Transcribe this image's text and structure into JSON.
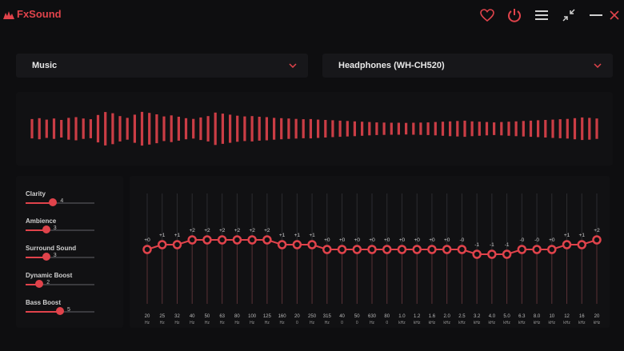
{
  "app": {
    "name": "FxSound"
  },
  "colors": {
    "accent": "#e0434b",
    "bg": "#0e0e10",
    "panel": "#17171a"
  },
  "top_icons": [
    "heart-icon",
    "power-icon",
    "menu-icon",
    "minimize-view-icon",
    "minimize-icon",
    "close-icon"
  ],
  "preset": {
    "value": "Music"
  },
  "output_device": {
    "value": "Headphones (WH-CH520)"
  },
  "effects": [
    {
      "label": "Clarity",
      "value": 4,
      "fraction": 0.4
    },
    {
      "label": "Ambience",
      "value": 3,
      "fraction": 0.3
    },
    {
      "label": "Surround Sound",
      "value": 3,
      "fraction": 0.3
    },
    {
      "label": "Dynamic Boost",
      "value": 2,
      "fraction": 0.2
    },
    {
      "label": "Bass Boost",
      "value": 5,
      "fraction": 0.5
    }
  ],
  "eq": {
    "bands": [
      {
        "gain": "+0",
        "g": 0,
        "f1": "20",
        "f2": "Hz"
      },
      {
        "gain": "+1",
        "g": 1,
        "f1": "25",
        "f2": "Hz"
      },
      {
        "gain": "+1",
        "g": 1,
        "f1": "32",
        "f2": "Hz"
      },
      {
        "gain": "+2",
        "g": 2,
        "f1": "40",
        "f2": "Hz"
      },
      {
        "gain": "+2",
        "g": 2,
        "f1": "50",
        "f2": "Hz"
      },
      {
        "gain": "+2",
        "g": 2,
        "f1": "63",
        "f2": "Hz"
      },
      {
        "gain": "+2",
        "g": 2,
        "f1": "80",
        "f2": "Hz"
      },
      {
        "gain": "+2",
        "g": 2,
        "f1": "100",
        "f2": "Hz"
      },
      {
        "gain": "+2",
        "g": 2,
        "f1": "125",
        "f2": "Hz"
      },
      {
        "gain": "+1",
        "g": 1,
        "f1": "160",
        "f2": "Hz"
      },
      {
        "gain": "+1",
        "g": 1,
        "f1": "20",
        "f2": "0"
      },
      {
        "gain": "+1",
        "g": 1,
        "f1": "250",
        "f2": "Hz"
      },
      {
        "gain": "+0",
        "g": 0,
        "f1": "315",
        "f2": "Hz"
      },
      {
        "gain": "+0",
        "g": 0,
        "f1": "40",
        "f2": "0"
      },
      {
        "gain": "+0",
        "g": 0,
        "f1": "50",
        "f2": "0"
      },
      {
        "gain": "+0",
        "g": 0,
        "f1": "630",
        "f2": "Hz"
      },
      {
        "gain": "+0",
        "g": 0,
        "f1": "80",
        "f2": "0"
      },
      {
        "gain": "+0",
        "g": 0,
        "f1": "1.0",
        "f2": "kHz"
      },
      {
        "gain": "+0",
        "g": 0,
        "f1": "1.2",
        "f2": "kHz"
      },
      {
        "gain": "+0",
        "g": 0,
        "f1": "1.6",
        "f2": "kHz"
      },
      {
        "gain": "+0",
        "g": 0,
        "f1": "2.0",
        "f2": "kHz"
      },
      {
        "gain": "-0",
        "g": 0,
        "f1": "2.5",
        "f2": "kHz"
      },
      {
        "gain": "-1",
        "g": -1,
        "f1": "3.2",
        "f2": "kHz"
      },
      {
        "gain": "-1",
        "g": -1,
        "f1": "4.0",
        "f2": "kHz"
      },
      {
        "gain": "-1",
        "g": -1,
        "f1": "5.0",
        "f2": "kHz"
      },
      {
        "gain": "-0",
        "g": 0,
        "f1": "6.3",
        "f2": "kHz"
      },
      {
        "gain": "-0",
        "g": 0,
        "f1": "8.0",
        "f2": "kHz"
      },
      {
        "gain": "+0",
        "g": 0,
        "f1": "10",
        "f2": "kHz"
      },
      {
        "gain": "+1",
        "g": 1,
        "f1": "12",
        "f2": "kHz"
      },
      {
        "gain": "+1",
        "g": 1,
        "f1": "16",
        "f2": "kHz"
      },
      {
        "gain": "+2",
        "g": 2,
        "f1": "20",
        "f2": "kHz"
      }
    ]
  },
  "visualizer": {
    "levels": [
      0.55,
      0.6,
      0.52,
      0.58,
      0.5,
      0.62,
      0.66,
      0.58,
      0.54,
      0.78,
      0.95,
      0.88,
      0.72,
      0.62,
      0.8,
      0.96,
      0.9,
      0.82,
      0.7,
      0.76,
      0.68,
      0.6,
      0.56,
      0.64,
      0.72,
      0.92,
      0.86,
      0.8,
      0.74,
      0.7,
      0.72,
      0.68,
      0.66,
      0.62,
      0.6,
      0.58,
      0.56,
      0.54,
      0.55,
      0.52,
      0.5,
      0.48,
      0.46,
      0.44,
      0.42,
      0.4,
      0.38,
      0.36,
      0.35,
      0.34,
      0.34,
      0.33,
      0.34,
      0.35,
      0.36,
      0.38,
      0.4,
      0.42,
      0.44,
      0.46,
      0.42,
      0.4,
      0.38,
      0.36,
      0.38,
      0.4,
      0.42,
      0.44,
      0.46,
      0.48,
      0.5,
      0.52,
      0.54,
      0.56,
      0.6,
      0.64,
      0.62,
      0.58
    ]
  }
}
